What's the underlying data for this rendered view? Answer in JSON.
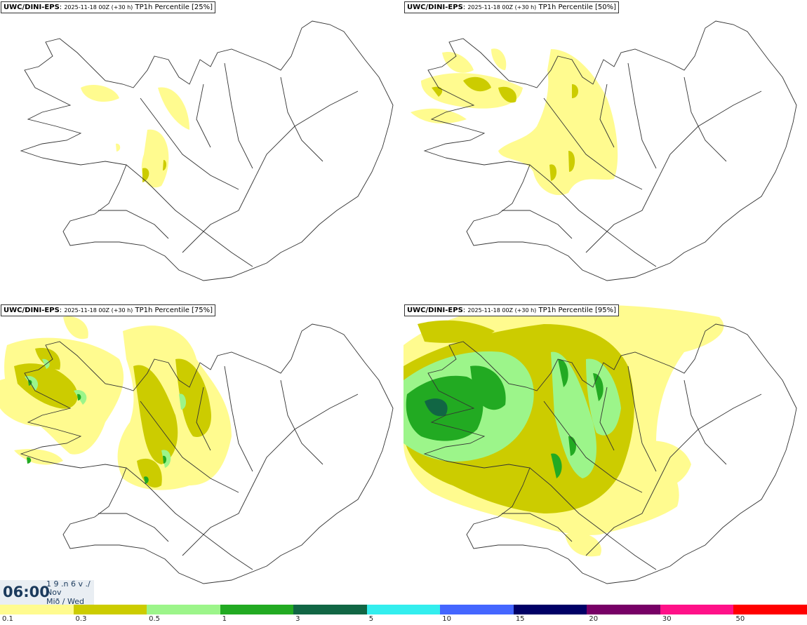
{
  "panels": [
    {
      "source": "UWC/DINI-EPS",
      "run": "2025-11-18 00Z (+30 h)",
      "field": "TP1h Percentile [25%]"
    },
    {
      "source": "UWC/DINI-EPS",
      "run": "2025-11-18 00Z (+30 h)",
      "field": "TP1h Percentile [50%]"
    },
    {
      "source": "UWC/DINI-EPS",
      "run": "2025-11-18 00Z (+30 h)",
      "field": "TP1h Percentile [75%]"
    },
    {
      "source": "UWC/DINI-EPS",
      "run": "2025-11-18 00Z (+30 h)",
      "field": "TP1h Percentile [95%]"
    }
  ],
  "time": {
    "clock": "06:00",
    "line1": "1 9 .n 6 v ./",
    "line2": "Nov",
    "line3": "Mið / Wed"
  },
  "legend": {
    "colors": [
      "#fffb8f",
      "#cccc00",
      "#9cf58a",
      "#22aa22",
      "#116644",
      "#33eeee",
      "#4466ff",
      "#000066",
      "#770066",
      "#ff1188",
      "#ff0000"
    ],
    "labels": [
      "0.1",
      "0.3",
      "0.5",
      "1",
      "3",
      "5",
      "10",
      "15",
      "20",
      "30",
      "50"
    ]
  },
  "map": {
    "region": "Iceland"
  }
}
